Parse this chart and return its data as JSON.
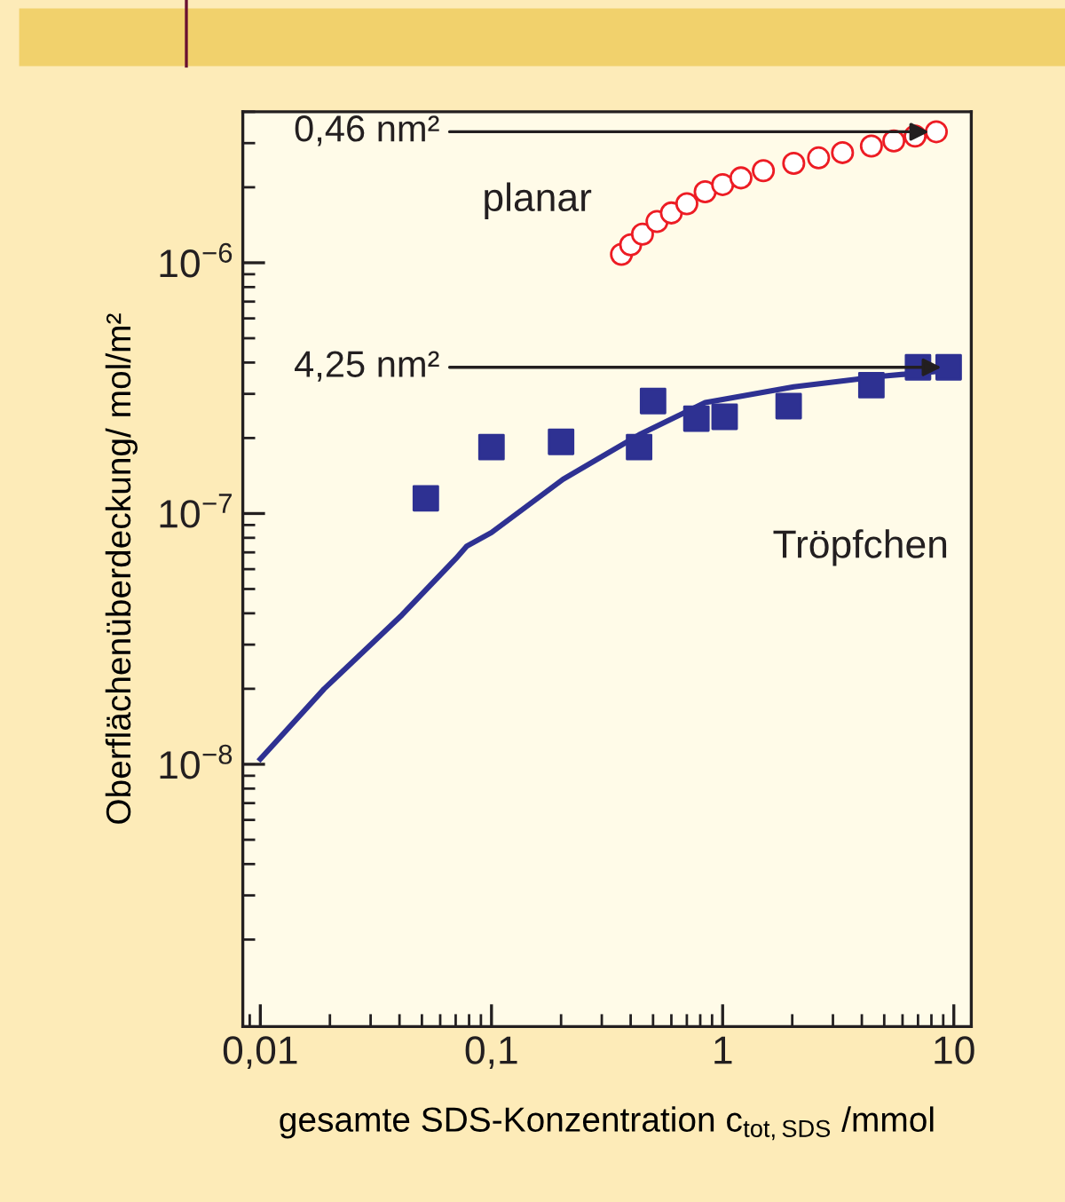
{
  "chart_data": {
    "type": "scatter",
    "xlabel": "gesamte SDS-Konzentration c$_{tot,SDS}$ /mmol",
    "ylabel": "Oberflächenüberdeckung/ mol/m²",
    "log": "xy",
    "xlim": [
      0.0084,
      11.9
    ],
    "ylim": [
      9e-10,
      4e-06
    ],
    "xticks": [
      {
        "value": 0.01,
        "label": "0,01"
      },
      {
        "value": 0.1,
        "label": "0,1"
      },
      {
        "value": 1,
        "label": "1"
      },
      {
        "value": 10,
        "label": "10"
      }
    ],
    "yticks": [
      {
        "value": 1e-08,
        "label": "10$^{−8}$"
      },
      {
        "value": 1e-07,
        "label": "10$^{−7}$"
      },
      {
        "value": 1e-06,
        "label": "10$^{−6}$"
      }
    ],
    "grid": false,
    "legend": false,
    "series": [
      {
        "name": "planar",
        "marker": "circle",
        "color": "#ed1c24",
        "x": [
          0.365,
          0.4,
          0.45,
          0.52,
          0.6,
          0.7,
          0.84,
          1.0,
          1.2,
          1.5,
          2.03,
          2.6,
          3.3,
          4.4,
          5.5,
          6.8,
          8.4
        ],
        "values": [
          1.08e-06,
          1.18e-06,
          1.3e-06,
          1.46e-06,
          1.58e-06,
          1.72e-06,
          1.92e-06,
          2.05e-06,
          2.18e-06,
          2.33e-06,
          2.49e-06,
          2.62e-06,
          2.75e-06,
          2.92e-06,
          3.06e-06,
          3.2e-06,
          3.33e-06
        ]
      },
      {
        "name": "Tröpfchen",
        "marker": "square",
        "color": "#2e3192",
        "x": [
          0.052,
          0.1,
          0.2,
          0.435,
          0.5,
          0.77,
          1.02,
          1.93,
          4.4,
          7.0,
          9.5
        ],
        "values": [
          1.15e-07,
          1.84e-07,
          1.93e-07,
          1.84e-07,
          2.81e-07,
          2.39e-07,
          2.43e-07,
          2.68e-07,
          3.25e-07,
          3.83e-07,
          3.83e-07
        ]
      },
      {
        "type": "line",
        "marker": "none",
        "line_style": "solid",
        "color": "#2e3192",
        "x": [
          0.01,
          0.0189,
          0.041,
          0.07,
          0.078,
          0.1,
          0.204,
          0.435,
          0.84,
          2.03,
          4.9,
          8.8
        ],
        "values": [
          1.05e-08,
          2e-08,
          3.94e-08,
          6.6e-08,
          7.4e-08,
          8.4e-08,
          1.37e-07,
          2.06e-07,
          2.77e-07,
          3.2e-07,
          3.53e-07,
          3.7e-07
        ]
      }
    ],
    "annotations": [
      {
        "text": "0,46 nm²",
        "x": 8.4,
        "y": 3.33e-06
      },
      {
        "text": "4,25 nm²",
        "x": 9.5,
        "y": 3.83e-07
      }
    ]
  }
}
